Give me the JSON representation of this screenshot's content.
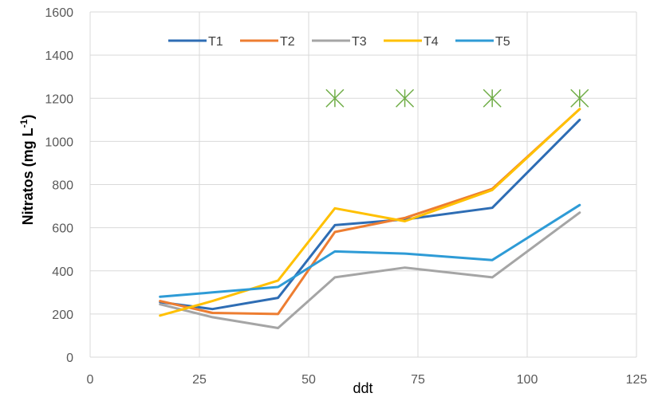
{
  "chart_data": {
    "type": "line",
    "title": "",
    "xlabel": "ddt",
    "ylabel": {
      "main": "Nitratos (mg L",
      "superscript": "-1",
      "close": ")"
    },
    "xlim": [
      0,
      125
    ],
    "ylim": [
      0,
      1600
    ],
    "xticks": [
      0,
      25,
      50,
      75,
      100,
      125
    ],
    "yticks": [
      0,
      200,
      400,
      600,
      800,
      1000,
      1200,
      1400,
      1600
    ],
    "grid": true,
    "legend_position": "top",
    "series": [
      {
        "name": "T1",
        "color": "#2E6DB4",
        "x": [
          16,
          28,
          43,
          56,
          72,
          92,
          112
        ],
        "y": [
          255,
          223,
          275,
          612,
          638,
          692,
          1100
        ]
      },
      {
        "name": "T2",
        "color": "#ED7D31",
        "x": [
          16,
          28,
          43,
          56,
          72,
          92,
          112
        ],
        "y": [
          260,
          205,
          200,
          580,
          645,
          780,
          1150
        ]
      },
      {
        "name": "T3",
        "color": "#A5A5A5",
        "x": [
          16,
          28,
          43,
          56,
          72,
          92,
          112
        ],
        "y": [
          245,
          185,
          135,
          370,
          415,
          370,
          670
        ]
      },
      {
        "name": "T4",
        "color": "#FFC000",
        "x": [
          16,
          28,
          43,
          56,
          72,
          92,
          112
        ],
        "y": [
          193,
          260,
          355,
          690,
          630,
          775,
          1150
        ]
      },
      {
        "name": "T5",
        "color": "#2E9BD6",
        "x": [
          16,
          28,
          43,
          56,
          72,
          92,
          112
        ],
        "y": [
          280,
          300,
          325,
          490,
          480,
          450,
          705
        ]
      }
    ],
    "markers": {
      "symbol": "asterisk",
      "color": "#70AD47",
      "x": [
        56,
        72,
        92,
        112
      ],
      "y": [
        1200,
        1200,
        1200,
        1200
      ]
    }
  }
}
